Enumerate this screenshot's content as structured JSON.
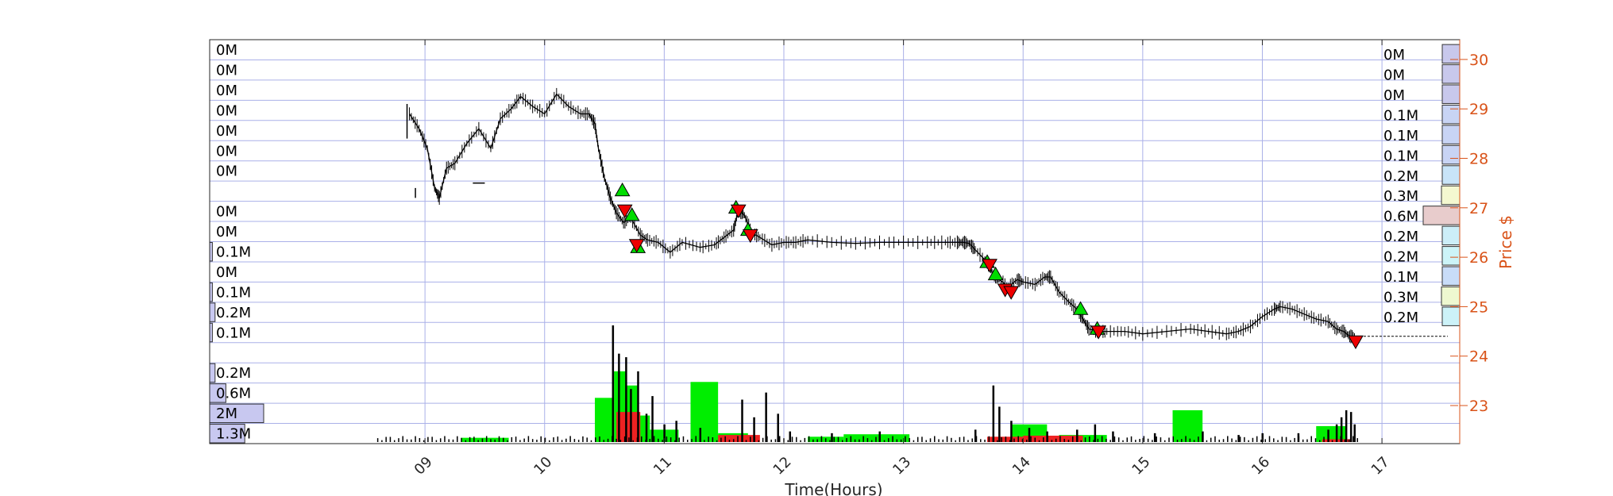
{
  "chart_data": {
    "type": "line",
    "title": "",
    "xlabel": "Time(Hours)",
    "ylabel": "Price $",
    "x_ticks": [
      "09",
      "10",
      "11",
      "12",
      "13",
      "14",
      "15",
      "16",
      "17"
    ],
    "y_ticks": [
      "23",
      "24",
      "25",
      "26",
      "27",
      "28",
      "29",
      "30"
    ],
    "xlim": [
      7.2,
      17.65
    ],
    "ylim": [
      22.23,
      30.4
    ],
    "grid": true,
    "colors": {
      "price_line": "#000000",
      "buy_volume": "#00ee00",
      "sell_volume": "#ee2222",
      "axis_right": "#d95319",
      "grid": "#aab0e8",
      "buy_marker": "#00dd00",
      "sell_marker": "#ee0000"
    },
    "price_series": {
      "name": "",
      "points": [
        [
          8.87,
          28.9
        ],
        [
          8.95,
          28.6
        ],
        [
          9.02,
          28.2
        ],
        [
          9.08,
          27.4
        ],
        [
          9.12,
          27.2
        ],
        [
          9.18,
          27.8
        ],
        [
          9.25,
          27.9
        ],
        [
          9.35,
          28.3
        ],
        [
          9.45,
          28.6
        ],
        [
          9.55,
          28.2
        ],
        [
          9.63,
          28.8
        ],
        [
          9.72,
          29.0
        ],
        [
          9.8,
          29.25
        ],
        [
          9.9,
          29.05
        ],
        [
          10.0,
          28.9
        ],
        [
          10.1,
          29.3
        ],
        [
          10.2,
          29.05
        ],
        [
          10.3,
          28.9
        ],
        [
          10.37,
          28.9
        ],
        [
          10.42,
          28.7
        ],
        [
          10.45,
          28.2
        ],
        [
          10.5,
          27.6
        ],
        [
          10.55,
          27.2
        ],
        [
          10.6,
          26.9
        ],
        [
          10.66,
          26.7
        ],
        [
          10.72,
          26.8
        ],
        [
          10.8,
          26.45
        ],
        [
          10.86,
          26.35
        ],
        [
          10.95,
          26.3
        ],
        [
          11.05,
          26.1
        ],
        [
          11.15,
          26.3
        ],
        [
          11.3,
          26.2
        ],
        [
          11.42,
          26.25
        ],
        [
          11.5,
          26.4
        ],
        [
          11.58,
          26.55
        ],
        [
          11.62,
          26.95
        ],
        [
          11.67,
          26.85
        ],
        [
          11.73,
          26.5
        ],
        [
          11.8,
          26.4
        ],
        [
          11.9,
          26.25
        ],
        [
          12.0,
          26.3
        ],
        [
          12.1,
          26.3
        ],
        [
          12.2,
          26.35
        ],
        [
          12.4,
          26.3
        ],
        [
          12.6,
          26.28
        ],
        [
          12.8,
          26.3
        ],
        [
          13.0,
          26.3
        ],
        [
          13.2,
          26.3
        ],
        [
          13.35,
          26.3
        ],
        [
          13.45,
          26.3
        ],
        [
          13.5,
          26.3
        ],
        [
          13.55,
          26.28
        ],
        [
          13.6,
          26.15
        ],
        [
          13.7,
          25.9
        ],
        [
          13.75,
          25.65
        ],
        [
          13.8,
          25.55
        ],
        [
          13.88,
          25.4
        ],
        [
          13.95,
          25.55
        ],
        [
          14.0,
          25.5
        ],
        [
          14.1,
          25.45
        ],
        [
          14.18,
          25.6
        ],
        [
          14.23,
          25.6
        ],
        [
          14.3,
          25.3
        ],
        [
          14.38,
          25.1
        ],
        [
          14.45,
          24.95
        ],
        [
          14.5,
          24.75
        ],
        [
          14.55,
          24.55
        ],
        [
          14.62,
          24.5
        ],
        [
          14.7,
          24.5
        ],
        [
          14.85,
          24.5
        ],
        [
          15.0,
          24.45
        ],
        [
          15.2,
          24.5
        ],
        [
          15.4,
          24.55
        ],
        [
          15.55,
          24.5
        ],
        [
          15.7,
          24.45
        ],
        [
          15.8,
          24.5
        ],
        [
          15.9,
          24.6
        ],
        [
          16.0,
          24.8
        ],
        [
          16.1,
          24.95
        ],
        [
          16.15,
          25.0
        ],
        [
          16.25,
          24.95
        ],
        [
          16.35,
          24.85
        ],
        [
          16.45,
          24.75
        ],
        [
          16.55,
          24.7
        ],
        [
          16.62,
          24.55
        ],
        [
          16.68,
          24.5
        ],
        [
          16.73,
          24.4
        ],
        [
          16.78,
          24.4
        ]
      ],
      "after_hours_level": 24.4,
      "after_hours_end": 17.55,
      "premarket_segments": [
        [
          [
            8.85,
            29.1
          ],
          [
            8.85,
            28.4
          ]
        ],
        [
          [
            8.92,
            27.4
          ],
          [
            8.92,
            27.2
          ]
        ],
        [
          [
            9.4,
            27.5
          ],
          [
            9.5,
            27.5
          ]
        ]
      ]
    },
    "buy_markers": [
      [
        10.65,
        27.35
      ],
      [
        10.73,
        26.85
      ],
      [
        10.78,
        26.2
      ],
      [
        11.6,
        27.0
      ],
      [
        11.7,
        26.55
      ],
      [
        13.7,
        25.9
      ],
      [
        13.77,
        25.65
      ],
      [
        14.48,
        24.95
      ],
      [
        14.62,
        24.55
      ]
    ],
    "sell_markers": [
      [
        10.67,
        26.95
      ],
      [
        10.77,
        26.25
      ],
      [
        11.62,
        26.95
      ],
      [
        11.72,
        26.45
      ],
      [
        13.72,
        25.85
      ],
      [
        13.85,
        25.35
      ],
      [
        13.9,
        25.3
      ],
      [
        14.63,
        24.5
      ],
      [
        16.78,
        24.3
      ]
    ],
    "volume_bars": {
      "buy_blocks": [
        {
          "x0": 9.3,
          "x1": 9.7,
          "value": 0.12
        },
        {
          "x0": 10.42,
          "x1": 10.58,
          "value": 1.25
        },
        {
          "x0": 10.58,
          "x1": 10.68,
          "value": 2.0
        },
        {
          "x0": 10.68,
          "x1": 10.78,
          "value": 1.6
        },
        {
          "x0": 10.78,
          "x1": 10.88,
          "value": 0.75
        },
        {
          "x0": 10.88,
          "x1": 11.12,
          "value": 0.35
        },
        {
          "x0": 11.22,
          "x1": 11.45,
          "value": 1.7
        },
        {
          "x0": 11.45,
          "x1": 11.7,
          "value": 0.25
        },
        {
          "x0": 12.2,
          "x1": 12.5,
          "value": 0.15
        },
        {
          "x0": 12.5,
          "x1": 13.05,
          "value": 0.22
        },
        {
          "x0": 13.9,
          "x1": 14.2,
          "value": 0.5
        },
        {
          "x0": 14.3,
          "x1": 14.7,
          "value": 0.2
        },
        {
          "x0": 15.25,
          "x1": 15.5,
          "value": 0.9
        },
        {
          "x0": 16.45,
          "x1": 16.7,
          "value": 0.45
        }
      ],
      "sell_blocks": [
        {
          "x0": 10.6,
          "x1": 10.8,
          "value": 0.85
        },
        {
          "x0": 11.45,
          "x1": 11.8,
          "value": 0.2
        },
        {
          "x0": 13.7,
          "x1": 14.0,
          "value": 0.15
        },
        {
          "x0": 14.0,
          "x1": 14.5,
          "value": 0.18
        },
        {
          "x0": 16.5,
          "x1": 16.75,
          "value": 0.08
        }
      ],
      "spikes": [
        [
          10.57,
          3.3
        ],
        [
          10.62,
          2.5
        ],
        [
          10.68,
          2.4
        ],
        [
          10.72,
          1.5
        ],
        [
          10.78,
          2.0
        ],
        [
          10.85,
          0.8
        ],
        [
          10.9,
          1.3
        ],
        [
          11.0,
          0.5
        ],
        [
          11.1,
          0.6
        ],
        [
          11.3,
          0.4
        ],
        [
          11.65,
          1.2
        ],
        [
          11.75,
          0.7
        ],
        [
          11.85,
          1.4
        ],
        [
          11.95,
          0.8
        ],
        [
          12.05,
          0.3
        ],
        [
          12.4,
          0.25
        ],
        [
          12.8,
          0.3
        ],
        [
          13.6,
          0.35
        ],
        [
          13.75,
          1.6
        ],
        [
          13.8,
          1.0
        ],
        [
          13.9,
          0.6
        ],
        [
          14.05,
          0.4
        ],
        [
          14.2,
          0.3
        ],
        [
          14.45,
          0.35
        ],
        [
          14.6,
          0.5
        ],
        [
          14.75,
          0.3
        ],
        [
          15.1,
          0.25
        ],
        [
          15.5,
          0.3
        ],
        [
          15.8,
          0.2
        ],
        [
          16.0,
          0.25
        ],
        [
          16.3,
          0.25
        ],
        [
          16.55,
          0.35
        ],
        [
          16.62,
          0.5
        ],
        [
          16.66,
          0.7
        ],
        [
          16.7,
          0.9
        ],
        [
          16.74,
          0.85
        ],
        [
          16.77,
          0.5
        ]
      ],
      "max_value": 3.3
    },
    "left_profile_labels": [
      "0M",
      "0M",
      "0M",
      "0M",
      "0M",
      "0M",
      "0M",
      "",
      "0M",
      "0M",
      "0.1M",
      "0M",
      "0.1M",
      "0.2M",
      "0.1M",
      "",
      "0.2M",
      "0.6M",
      "2M",
      "1.3M"
    ],
    "left_profile_values": [
      0,
      0,
      0,
      0,
      0,
      0,
      0,
      0,
      0,
      0,
      0.1,
      0,
      0.1,
      0.2,
      0.1,
      0,
      0.2,
      0.6,
      2,
      1.3
    ],
    "right_profile_labels": [
      "0M",
      "0M",
      "0M",
      "0.1M",
      "0.1M",
      "0.1M",
      "0.2M",
      "0.3M",
      "0.6M",
      "0.2M",
      "0.2M",
      "0.1M",
      "0.3M",
      "0.2M"
    ],
    "right_profile_values": [
      0.02,
      0.02,
      0.02,
      0.1,
      0.1,
      0.1,
      0.2,
      0.3,
      0.6,
      0.2,
      0.2,
      0.1,
      0.3,
      0.2
    ],
    "right_profile_colors": [
      "#c8c8ec",
      "#c8c8ec",
      "#c8c8ec",
      "#c8d4f4",
      "#c8d4f4",
      "#c8d4f4",
      "#c8e4f8",
      "#f4f8d0",
      "#e8cccc",
      "#cceef8",
      "#ccf4f8",
      "#c8dcf8",
      "#eef8d0",
      "#ccf2f8"
    ]
  }
}
